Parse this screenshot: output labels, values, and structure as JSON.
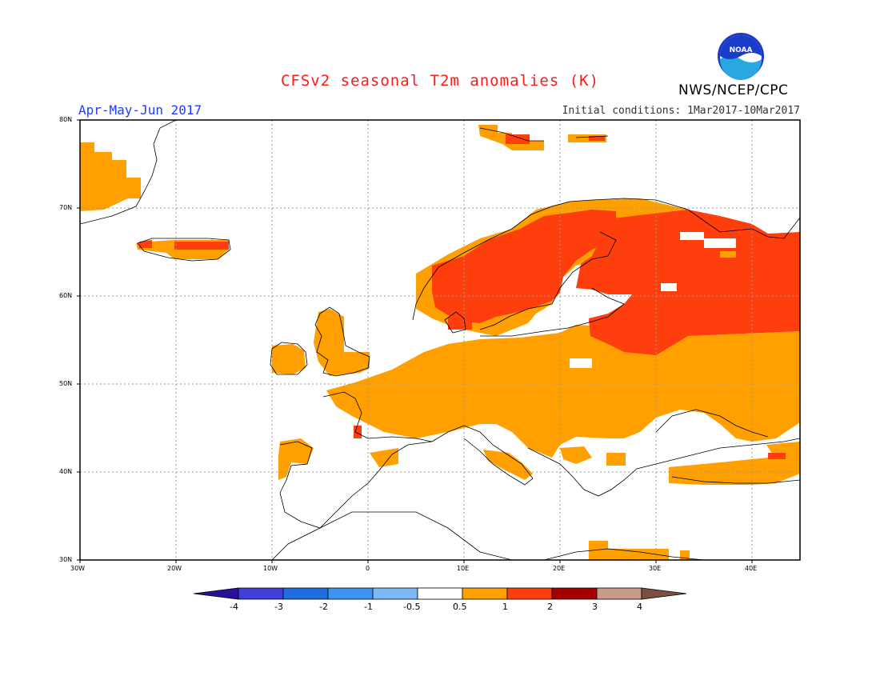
{
  "header": {
    "title": "CFSv2 seasonal T2m anomalies (K)",
    "season": "Apr-May-Jun 2017",
    "initial_conditions": "Initial conditions: 1Mar2017-10Mar2017",
    "organization": "NWS/NCEP/CPC",
    "logo_text": "NOAA"
  },
  "map": {
    "region": "Europe",
    "lat_labels": [
      "80N",
      "70N",
      "60N",
      "50N",
      "40N",
      "30N"
    ],
    "lon_labels": [
      "30W",
      "20W",
      "10W",
      "0",
      "10E",
      "20E",
      "30E",
      "40E"
    ],
    "colors": {
      "land_outline": "#000000",
      "grid": "#9a9a9a",
      "anom_0_5_1": "#ff9f00",
      "anom_1_2": "#ff3e0d"
    }
  },
  "colorbar": {
    "labels": [
      "-4",
      "-3",
      "-2",
      "-1",
      "-0.5",
      "0.5",
      "1",
      "2",
      "3",
      "4"
    ],
    "colors": [
      "#2a0f9a",
      "#4040d8",
      "#1e6ee0",
      "#3c96f0",
      "#7ab9f5",
      "#ffffff",
      "#ff9f00",
      "#ff3e0d",
      "#a50000",
      "#c89a8a",
      "#7a5040"
    ]
  }
}
